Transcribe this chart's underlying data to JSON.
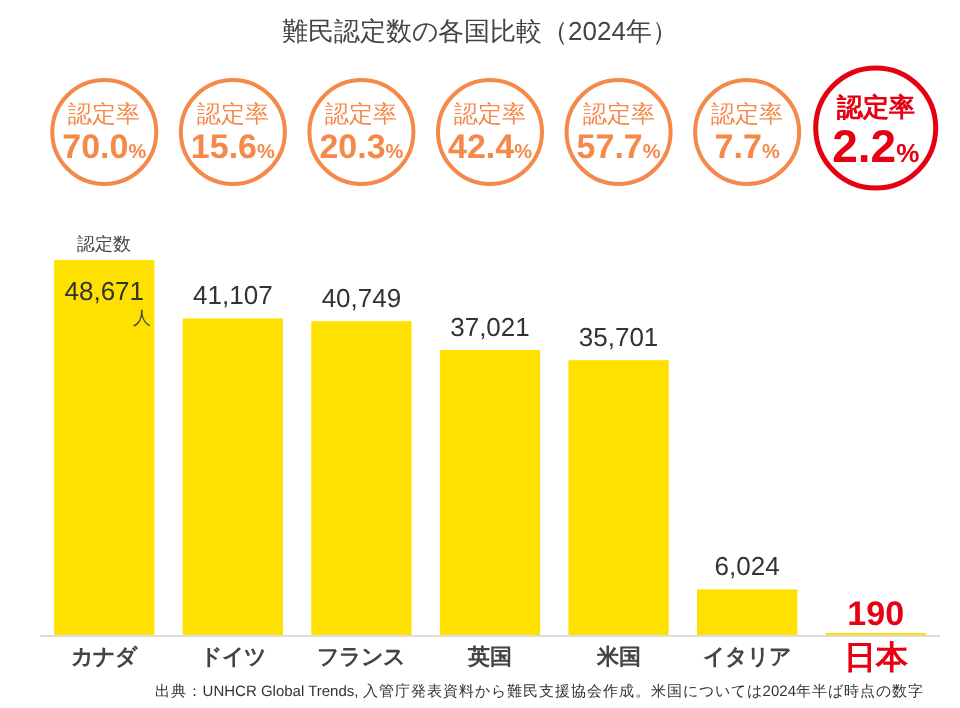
{
  "chart_data": {
    "type": "bar",
    "title": "難民認定数の各国比較（2024年）",
    "categories": [
      "カナダ",
      "ドイツ",
      "フランス",
      "英国",
      "米国",
      "イタリア",
      "日本"
    ],
    "values": [
      48671,
      41107,
      40749,
      37021,
      35701,
      6024,
      190
    ],
    "value_labels": [
      "48,671",
      "41,107",
      "40,749",
      "37,021",
      "35,701",
      "6,024",
      "190"
    ],
    "color": "#ffe100",
    "annotations": [
      "認定率\n70.0%",
      "認定率\n15.6%",
      "認定率\n20.3%",
      "認定率\n42.4%",
      "認定率\n57.7%",
      "認定率\n7.7%",
      "認定率\n2.2%",
      "認定数",
      "人",
      "出典：UNHCR Global Trends, 入管庁発表資料から難民支援協会作成。米国については2024年半ば時点の数字"
    ]
  }
}
